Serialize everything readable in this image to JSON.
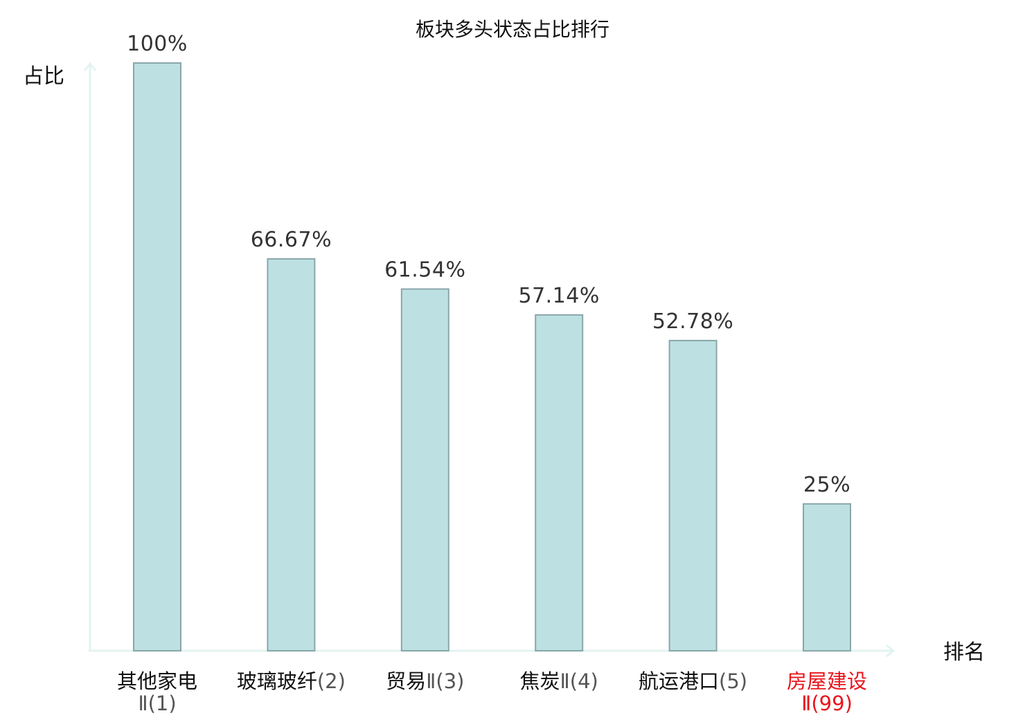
{
  "chart_data": {
    "type": "bar",
    "title": "板块多头状态占比排行",
    "ylabel": "占比",
    "xlabel": "排名",
    "ylim": [
      0,
      100
    ],
    "grid": false,
    "categories": [
      {
        "name": "其他家电",
        "rank": "Ⅱ(1)",
        "wrap": true,
        "highlight": false
      },
      {
        "name": "玻璃玻纤",
        "rank": "(2)",
        "wrap": false,
        "highlight": false
      },
      {
        "name": "贸易",
        "rank": "Ⅱ(3)",
        "wrap": false,
        "highlight": false
      },
      {
        "name": "焦炭",
        "rank": "Ⅱ(4)",
        "wrap": false,
        "highlight": false
      },
      {
        "name": "航运港口",
        "rank": "(5)",
        "wrap": false,
        "highlight": false
      },
      {
        "name": "房屋建设",
        "rank": "Ⅱ(99)",
        "wrap": true,
        "highlight": true
      }
    ],
    "values": [
      100,
      66.67,
      61.54,
      57.14,
      52.78,
      25
    ],
    "value_labels": [
      "100%",
      "66.67%",
      "61.54%",
      "57.14%",
      "52.78%",
      "25%"
    ],
    "colors": {
      "bar_fill": "#bde0e3",
      "bar_stroke": "#8aa6a9",
      "axis": "#e3f3f1",
      "highlight": "#e8161d"
    }
  }
}
